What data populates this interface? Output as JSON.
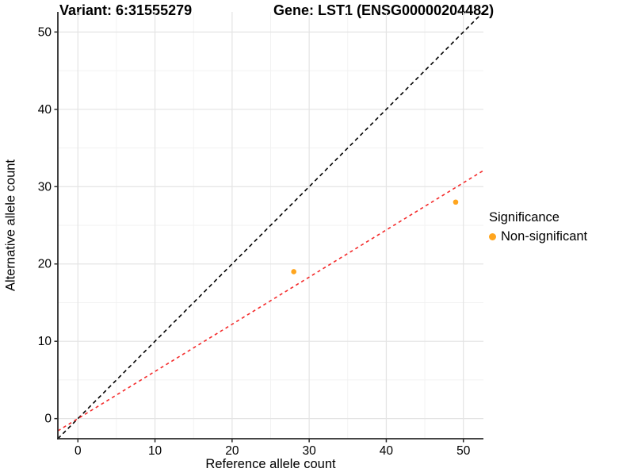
{
  "titles": {
    "left": "Variant: 6:31555279",
    "right": "Gene: LST1 (ENSG00000204482)"
  },
  "legend": {
    "title": "Significance",
    "items": [
      {
        "label": "Non-significant",
        "color": "#FFA51E"
      }
    ]
  },
  "colors": {
    "background": "#FFFFFF",
    "point": "#FFA51E",
    "identity_line": "#000000",
    "fit_line": "#F42A2A",
    "grid_major": "#E4E4E4",
    "grid_minor": "#F2F2F2",
    "axis": "#2B2B2B",
    "text": "#000000"
  },
  "chart_data": {
    "type": "scatter",
    "title_left": "Variant: 6:31555279",
    "title_right": "Gene: LST1 (ENSG00000204482)",
    "xlabel": "Reference allele count",
    "ylabel": "Alternative allele count",
    "x_ticks": [
      0,
      10,
      20,
      30,
      40,
      50
    ],
    "y_ticks": [
      0,
      10,
      20,
      30,
      40,
      50
    ],
    "xlim": [
      -2.6,
      52.6
    ],
    "ylim": [
      -2.6,
      52.6
    ],
    "grid": "major+minor",
    "legend_position": "right",
    "series": [
      {
        "name": "Non-significant",
        "color": "#FFA51E",
        "points": [
          {
            "x": 28,
            "y": 19
          },
          {
            "x": 49,
            "y": 28
          }
        ]
      }
    ],
    "reference_lines": [
      {
        "name": "identity",
        "slope": 1,
        "intercept": 0,
        "color": "#000000",
        "style": "dashed"
      },
      {
        "name": "fit",
        "slope": 0.61,
        "intercept": 0,
        "color": "#F42A2A",
        "style": "dashed"
      }
    ]
  }
}
